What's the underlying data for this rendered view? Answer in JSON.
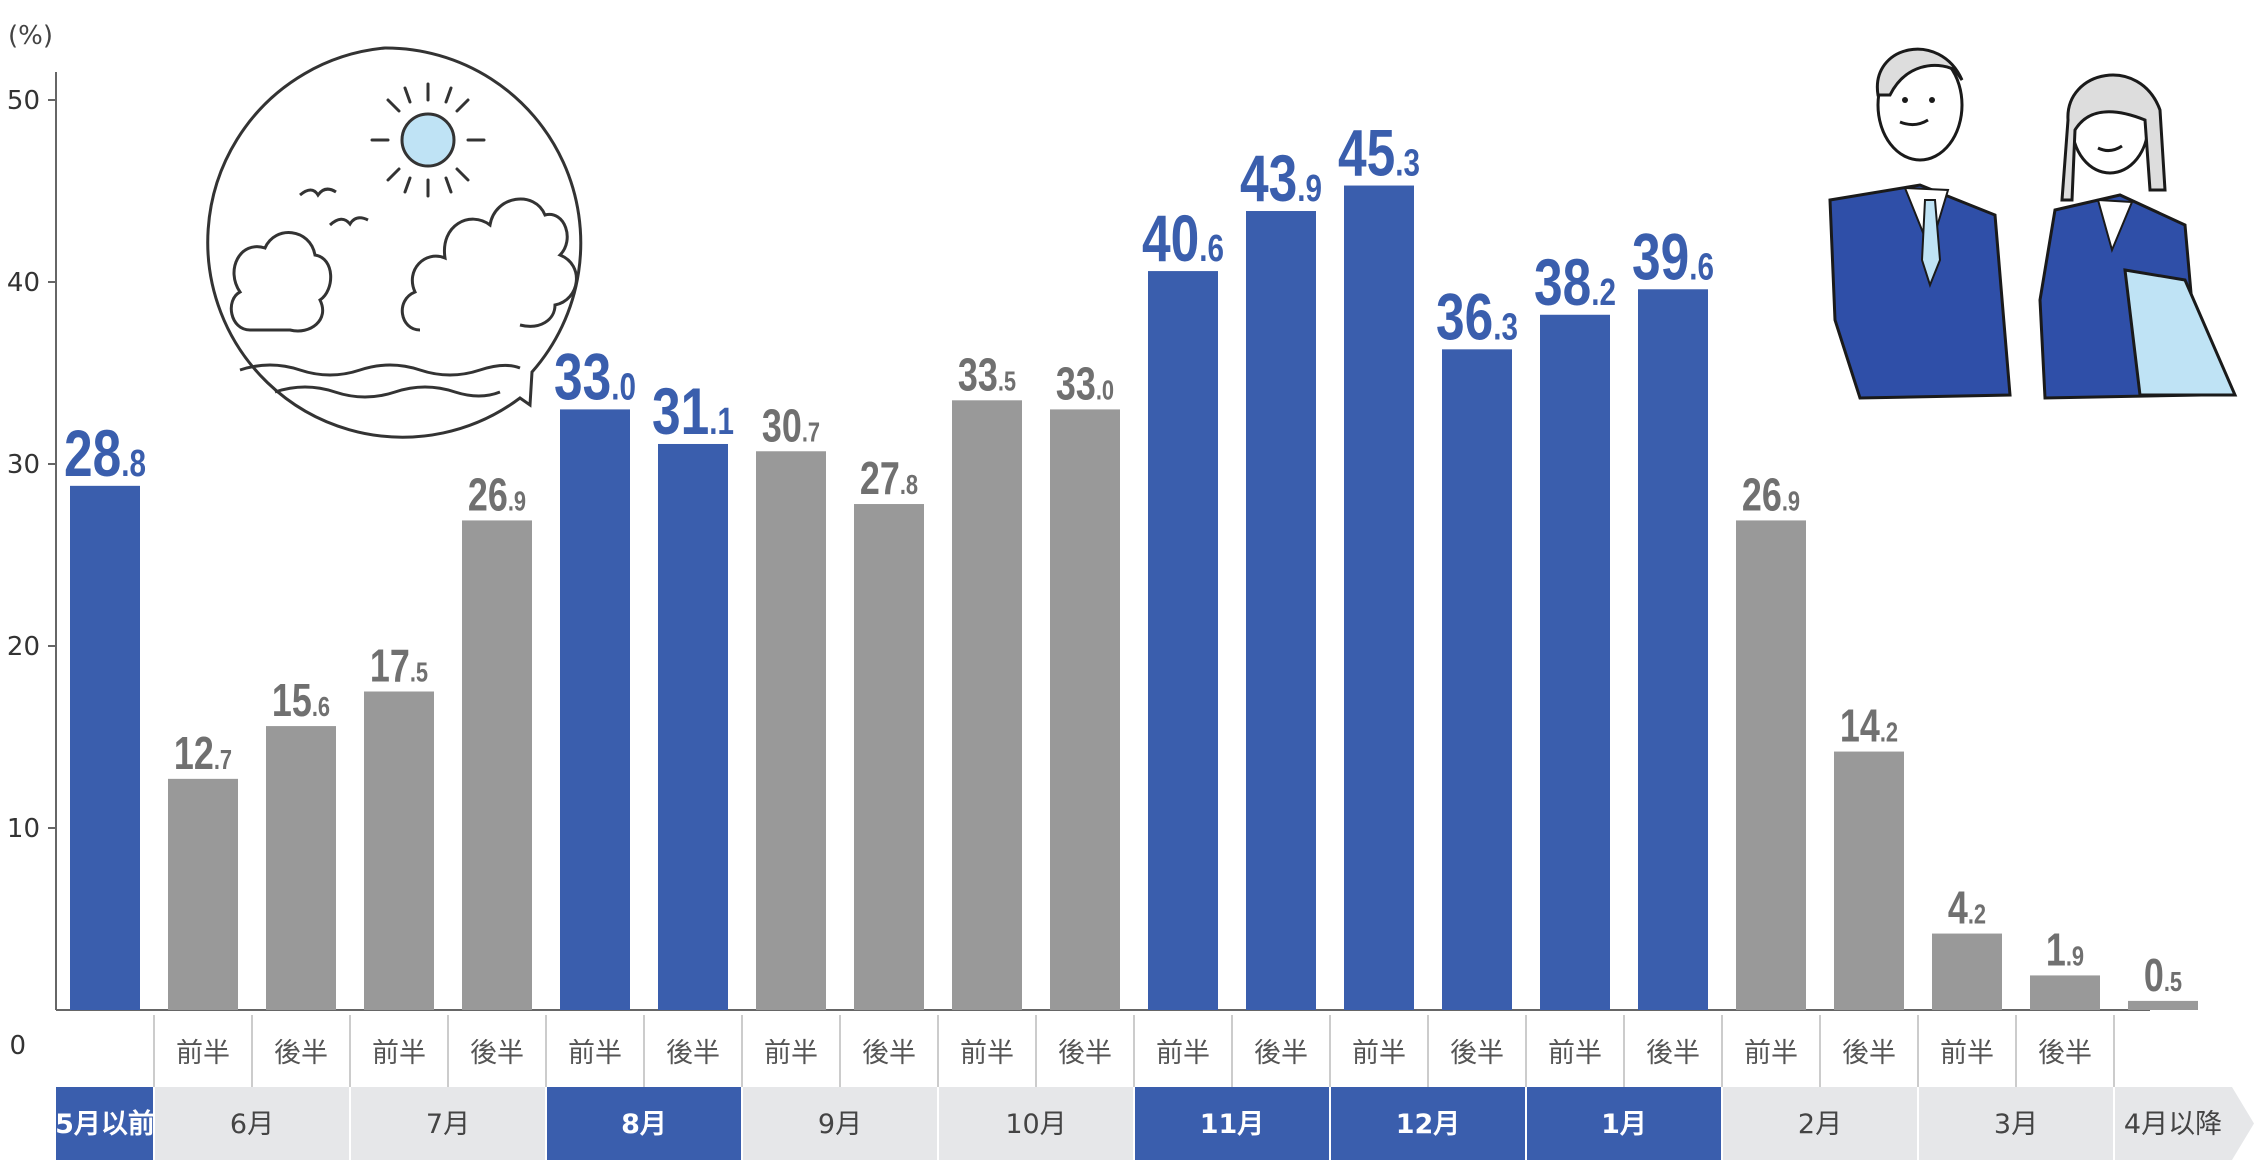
{
  "chart_data": {
    "type": "bar",
    "unit_label": "(%)",
    "ylim": [
      0,
      50
    ],
    "yticks": [
      0,
      10,
      20,
      30,
      40,
      50
    ],
    "grid": false,
    "colors": {
      "highlight": "#3A5EAD",
      "normal": "#999999",
      "axis": "#666666"
    },
    "bars": [
      {
        "value": 28.8,
        "int": "28",
        "dec": ".8",
        "highlight": true,
        "half": ""
      },
      {
        "value": 12.7,
        "int": "12",
        "dec": ".7",
        "highlight": false,
        "half": "前半"
      },
      {
        "value": 15.6,
        "int": "15",
        "dec": ".6",
        "highlight": false,
        "half": "後半"
      },
      {
        "value": 17.5,
        "int": "17",
        "dec": ".5",
        "highlight": false,
        "half": "前半"
      },
      {
        "value": 26.9,
        "int": "26",
        "dec": ".9",
        "highlight": false,
        "half": "後半"
      },
      {
        "value": 33.0,
        "int": "33",
        "dec": ".0",
        "highlight": true,
        "half": "前半"
      },
      {
        "value": 31.1,
        "int": "31",
        "dec": ".1",
        "highlight": true,
        "half": "後半"
      },
      {
        "value": 30.7,
        "int": "30",
        "dec": ".7",
        "highlight": false,
        "half": "前半"
      },
      {
        "value": 27.8,
        "int": "27",
        "dec": ".8",
        "highlight": false,
        "half": "後半"
      },
      {
        "value": 33.5,
        "int": "33",
        "dec": ".5",
        "highlight": false,
        "half": "前半"
      },
      {
        "value": 33.0,
        "int": "33",
        "dec": ".0",
        "highlight": false,
        "half": "後半"
      },
      {
        "value": 40.6,
        "int": "40",
        "dec": ".6",
        "highlight": true,
        "half": "前半"
      },
      {
        "value": 43.9,
        "int": "43",
        "dec": ".9",
        "highlight": true,
        "half": "後半"
      },
      {
        "value": 45.3,
        "int": "45",
        "dec": ".3",
        "highlight": true,
        "half": "前半"
      },
      {
        "value": 36.3,
        "int": "36",
        "dec": ".3",
        "highlight": true,
        "half": "後半"
      },
      {
        "value": 38.2,
        "int": "38",
        "dec": ".2",
        "highlight": true,
        "half": "前半"
      },
      {
        "value": 39.6,
        "int": "39",
        "dec": ".6",
        "highlight": true,
        "half": "後半"
      },
      {
        "value": 26.9,
        "int": "26",
        "dec": ".9",
        "highlight": false,
        "half": "前半"
      },
      {
        "value": 14.2,
        "int": "14",
        "dec": ".2",
        "highlight": false,
        "half": "後半"
      },
      {
        "value": 4.2,
        "int": "4",
        "dec": ".2",
        "highlight": false,
        "half": "前半"
      },
      {
        "value": 1.9,
        "int": "1",
        "dec": ".9",
        "highlight": false,
        "half": "後半"
      },
      {
        "value": 0.5,
        "int": "0",
        "dec": ".5",
        "highlight": false,
        "half": ""
      }
    ],
    "months": [
      {
        "label": "5月以前",
        "highlight": true
      },
      {
        "label": "6月",
        "highlight": false
      },
      {
        "label": "7月",
        "highlight": false
      },
      {
        "label": "8月",
        "highlight": true
      },
      {
        "label": "9月",
        "highlight": false
      },
      {
        "label": "10月",
        "highlight": false
      },
      {
        "label": "11月",
        "highlight": true
      },
      {
        "label": "12月",
        "highlight": true
      },
      {
        "label": "1月",
        "highlight": true
      },
      {
        "label": "2月",
        "highlight": false
      },
      {
        "label": "3月",
        "highlight": false
      },
      {
        "label": "4月以降",
        "highlight": false
      }
    ]
  },
  "illustrations": {
    "summer": "summer-scene-icon",
    "students": "job-seeker-students-icon"
  }
}
